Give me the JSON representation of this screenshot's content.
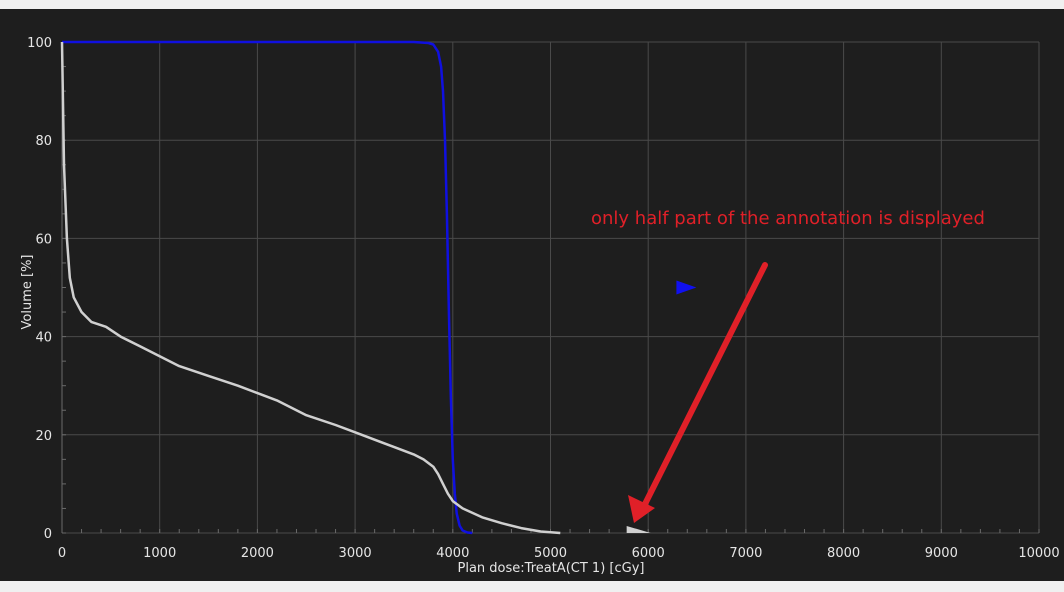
{
  "chart_data": {
    "type": "line",
    "title": "",
    "xlabel": "Plan dose:TreatA(CT 1) [cGy]",
    "ylabel": "Volume [%]",
    "xlim": [
      0,
      10000
    ],
    "ylim": [
      0,
      100
    ],
    "x_ticks": [
      0,
      1000,
      2000,
      3000,
      4000,
      5000,
      6000,
      7000,
      8000,
      9000,
      10000
    ],
    "y_ticks": [
      0,
      20,
      40,
      60,
      80,
      100
    ],
    "grid": true,
    "series": [
      {
        "color": "#1010e0",
        "x": [
          0,
          500,
          1000,
          2000,
          3000,
          3600,
          3750,
          3800,
          3850,
          3880,
          3900,
          3920,
          3940,
          3960,
          3980,
          4000,
          4020,
          4040,
          4070,
          4100,
          4150,
          4200
        ],
        "y": [
          100,
          100,
          100,
          100,
          100,
          100,
          99.8,
          99.5,
          98,
          95,
          90,
          80,
          65,
          45,
          28,
          15,
          8,
          4,
          1.5,
          0.5,
          0.1,
          0
        ]
      },
      {
        "color": "#d0d0d0",
        "x": [
          0,
          20,
          50,
          80,
          120,
          200,
          300,
          450,
          600,
          800,
          1000,
          1200,
          1500,
          1800,
          2000,
          2200,
          2500,
          2800,
          3000,
          3200,
          3400,
          3600,
          3700,
          3800,
          3850,
          3900,
          3950,
          4000,
          4100,
          4300,
          4500,
          4700,
          4900,
          5100
        ],
        "y": [
          100,
          75,
          60,
          52,
          48,
          45,
          43,
          42,
          40,
          38,
          36,
          34,
          32,
          30,
          28.5,
          27,
          24,
          22,
          20.5,
          19,
          17.5,
          16,
          15,
          13.5,
          12,
          10,
          8,
          6.5,
          5,
          3.2,
          2,
          1,
          0.3,
          0
        ]
      }
    ],
    "annotations": [
      {
        "text": "only half part of the annotation is displayed",
        "color": "#e02028"
      }
    ],
    "markers": [
      {
        "shape": "triangle-right",
        "color": "#1010f0",
        "x": 6350,
        "y": 50
      },
      {
        "shape": "triangle-right",
        "color": "#d0d0d0",
        "x": 5800,
        "y": 0
      }
    ]
  }
}
